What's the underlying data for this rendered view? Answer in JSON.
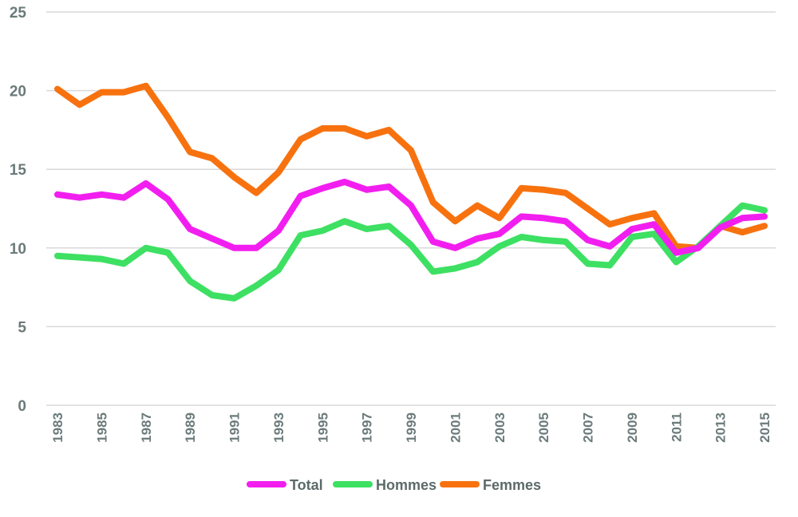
{
  "chart_data": {
    "type": "line",
    "x": [
      1983,
      1984,
      1985,
      1986,
      1987,
      1988,
      1989,
      1990,
      1991,
      1992,
      1993,
      1994,
      1995,
      1996,
      1997,
      1998,
      1999,
      2000,
      2001,
      2002,
      2003,
      2004,
      2005,
      2006,
      2007,
      2008,
      2009,
      2010,
      2011,
      2012,
      2013,
      2014,
      2015
    ],
    "x_tick_labels": [
      "1983",
      "1985",
      "1987",
      "1989",
      "1991",
      "1993",
      "1995",
      "1997",
      "1999",
      "2001",
      "2003",
      "2005",
      "2007",
      "2009",
      "2011",
      "2013",
      "2015"
    ],
    "y_tick_labels": [
      "0",
      "5",
      "10",
      "15",
      "20",
      "25"
    ],
    "ylim": [
      0,
      25
    ],
    "grid": true,
    "legend_position": "bottom",
    "series": [
      {
        "name": "Total",
        "color": "#f21ef0",
        "values": [
          13.4,
          13.2,
          13.4,
          13.2,
          14.1,
          13.1,
          11.2,
          10.6,
          10.0,
          10.0,
          11.1,
          13.3,
          13.8,
          14.2,
          13.7,
          13.9,
          12.7,
          10.4,
          10.0,
          10.6,
          10.9,
          12.0,
          11.9,
          11.7,
          10.5,
          10.1,
          11.2,
          11.5,
          9.7,
          10.0,
          11.3,
          11.9,
          12.0
        ]
      },
      {
        "name": "Hommes",
        "color": "#3de062",
        "values": [
          9.5,
          9.4,
          9.3,
          9.0,
          10.0,
          9.7,
          7.9,
          7.0,
          6.8,
          7.6,
          8.6,
          10.8,
          11.1,
          11.7,
          11.2,
          11.4,
          10.2,
          8.5,
          8.7,
          9.1,
          10.1,
          10.7,
          10.5,
          10.4,
          9.0,
          8.9,
          10.7,
          10.9,
          9.1,
          10.1,
          11.4,
          12.7,
          12.4
        ]
      },
      {
        "name": "Femmes",
        "color": "#f7720f",
        "values": [
          20.1,
          19.1,
          19.9,
          19.9,
          20.3,
          18.3,
          16.1,
          15.7,
          14.5,
          13.5,
          14.8,
          16.9,
          17.6,
          17.6,
          17.1,
          17.5,
          16.2,
          12.9,
          11.7,
          12.7,
          11.9,
          13.8,
          13.7,
          13.5,
          12.5,
          11.5,
          11.9,
          12.2,
          10.1,
          10.0,
          11.4,
          11.0,
          11.4
        ]
      }
    ]
  }
}
